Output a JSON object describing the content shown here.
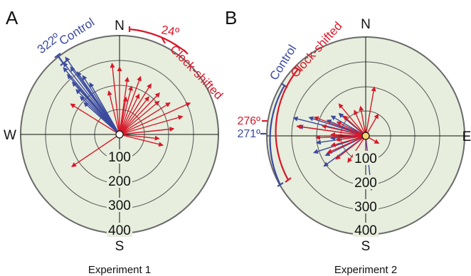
{
  "colors": {
    "control": "#3b4a9e",
    "clock_shifted": "#d7192a",
    "disc_fill": "#e7eedd",
    "ring_stroke": "#555555",
    "rim_stroke": "#6a6a6a"
  },
  "compass": {
    "n": "N",
    "s": "S",
    "e": "E",
    "w": "W"
  },
  "ring_labels": [
    "100",
    "200",
    "300",
    "400"
  ],
  "panels": [
    {
      "panel_label": "A",
      "caption": "Experiment 1",
      "control": {
        "label": "Control",
        "mean_label": "322º",
        "mean_deg": 322,
        "vectors": [
          {
            "bearing": 322,
            "length": 0.92
          },
          {
            "bearing": 324,
            "length": 0.84
          },
          {
            "bearing": 326,
            "length": 0.76
          },
          {
            "bearing": 320,
            "length": 0.88
          },
          {
            "bearing": 318,
            "length": 0.71
          },
          {
            "bearing": 316,
            "length": 0.63
          },
          {
            "bearing": 328,
            "length": 0.7
          },
          {
            "bearing": 314,
            "length": 0.55
          },
          {
            "bearing": 312,
            "length": 0.48
          },
          {
            "bearing": 330,
            "length": 0.6
          },
          {
            "bearing": 325,
            "length": 0.95
          },
          {
            "bearing": 319,
            "length": 0.8
          }
        ]
      },
      "clock_shifted": {
        "label": "Clock-shifted",
        "mean_label": "24º",
        "mean_deg": 24,
        "vectors": [
          {
            "bearing": 0,
            "length": 0.68
          },
          {
            "bearing": 8,
            "length": 0.58
          },
          {
            "bearing": 14,
            "length": 0.5
          },
          {
            "bearing": 20,
            "length": 0.62
          },
          {
            "bearing": 26,
            "length": 0.45
          },
          {
            "bearing": 32,
            "length": 0.6
          },
          {
            "bearing": 38,
            "length": 0.48
          },
          {
            "bearing": 44,
            "length": 0.58
          },
          {
            "bearing": 50,
            "length": 0.52
          },
          {
            "bearing": 58,
            "length": 0.6
          },
          {
            "bearing": 66,
            "length": 0.78
          },
          {
            "bearing": 74,
            "length": 0.66
          },
          {
            "bearing": 84,
            "length": 0.55
          },
          {
            "bearing": 96,
            "length": 0.4
          },
          {
            "bearing": 104,
            "length": 0.45
          },
          {
            "bearing": 236,
            "length": 0.58
          },
          {
            "bearing": 302,
            "length": 0.58
          },
          {
            "bearing": 346,
            "length": 0.45
          },
          {
            "bearing": 354,
            "length": 0.72
          },
          {
            "bearing": 10,
            "length": 0.38
          }
        ]
      }
    },
    {
      "panel_label": "B",
      "caption": "Experiment 2",
      "control": {
        "label": "Control",
        "mean_label": "271º",
        "mean_deg": 271,
        "vectors": [
          {
            "bearing": 284,
            "length": 0.75
          },
          {
            "bearing": 288,
            "length": 0.6
          },
          {
            "bearing": 292,
            "length": 0.42
          },
          {
            "bearing": 300,
            "length": 0.4
          },
          {
            "bearing": 310,
            "length": 0.35
          },
          {
            "bearing": 266,
            "length": 0.35
          },
          {
            "bearing": 262,
            "length": 0.5
          },
          {
            "bearing": 252,
            "length": 0.55
          },
          {
            "bearing": 244,
            "length": 0.45
          },
          {
            "bearing": 234,
            "length": 0.52
          },
          {
            "bearing": 174,
            "length": 0.55
          },
          {
            "bearing": 278,
            "length": 0.68
          }
        ]
      },
      "clock_shifted": {
        "label": "Clock-shifted",
        "mean_label": "276º",
        "mean_deg": 276,
        "vectors": [
          {
            "bearing": 278,
            "length": 0.7
          },
          {
            "bearing": 283,
            "length": 0.45
          },
          {
            "bearing": 296,
            "length": 0.32
          },
          {
            "bearing": 312,
            "length": 0.3
          },
          {
            "bearing": 320,
            "length": 0.42
          },
          {
            "bearing": 336,
            "length": 0.28
          },
          {
            "bearing": 350,
            "length": 0.3
          },
          {
            "bearing": 10,
            "length": 0.5
          },
          {
            "bearing": 30,
            "length": 0.25
          },
          {
            "bearing": 120,
            "length": 0.15
          },
          {
            "bearing": 180,
            "length": 0.22
          },
          {
            "bearing": 214,
            "length": 0.32
          },
          {
            "bearing": 232,
            "length": 0.38
          },
          {
            "bearing": 246,
            "length": 0.42
          },
          {
            "bearing": 254,
            "length": 0.36
          },
          {
            "bearing": 262,
            "length": 0.3
          },
          {
            "bearing": 268,
            "length": 0.5
          },
          {
            "bearing": 272,
            "length": 0.35
          },
          {
            "bearing": 290,
            "length": 0.55
          }
        ]
      }
    }
  ]
}
